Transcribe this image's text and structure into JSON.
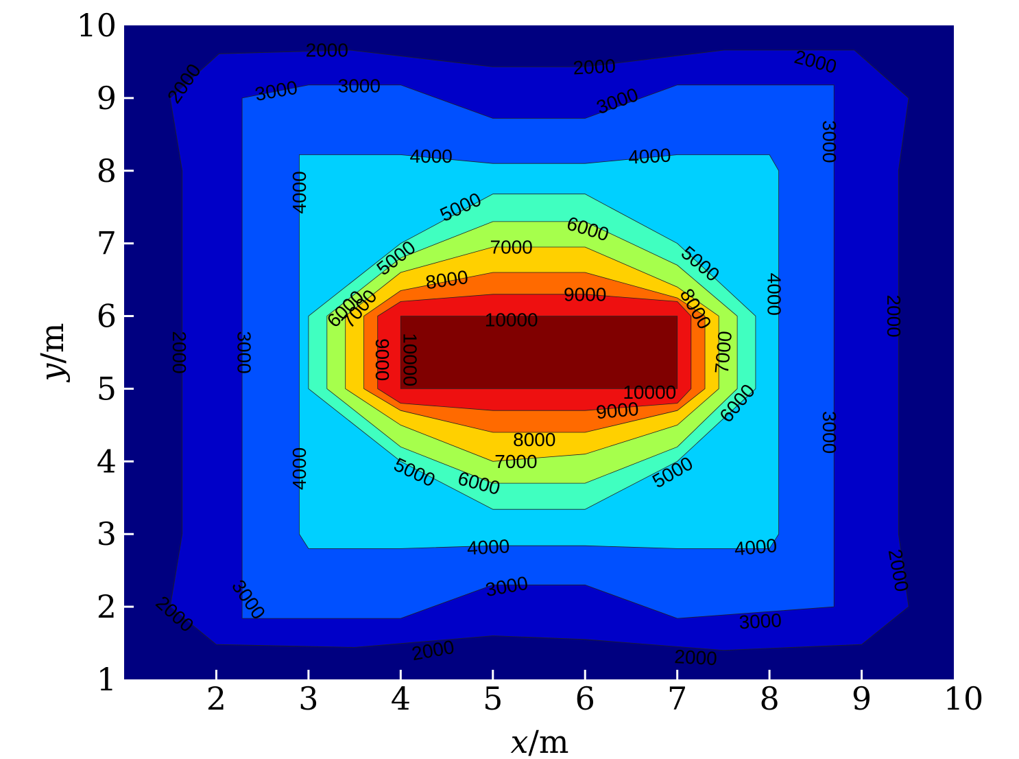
{
  "chart_data": {
    "type": "contour",
    "xlabel_var": "x",
    "ylabel_var": "y",
    "unit": "/m",
    "xlim": [
      1,
      10
    ],
    "ylim": [
      1,
      10
    ],
    "xticks": [
      2,
      3,
      4,
      5,
      6,
      7,
      8,
      9,
      10
    ],
    "yticks": [
      1,
      2,
      3,
      4,
      5,
      6,
      7,
      8,
      9,
      10
    ],
    "grid": false,
    "colormap": "jet",
    "background_color": "#000080",
    "levels": [
      {
        "value": 2000,
        "color": "#0000C8",
        "polygon": [
          [
            2.03,
            9.61
          ],
          [
            3.45,
            9.66
          ],
          [
            5.0,
            9.43
          ],
          [
            6.0,
            9.43
          ],
          [
            7.51,
            9.66
          ],
          [
            8.92,
            9.66
          ],
          [
            9.51,
            9.0
          ],
          [
            9.4,
            8.0
          ],
          [
            9.4,
            3.0
          ],
          [
            9.51,
            2.0
          ],
          [
            9.0,
            1.48
          ],
          [
            7.5,
            1.4
          ],
          [
            6.0,
            1.55
          ],
          [
            5.0,
            1.6
          ],
          [
            3.5,
            1.44
          ],
          [
            2.0,
            1.48
          ],
          [
            1.5,
            2.0
          ],
          [
            1.63,
            3.0
          ],
          [
            1.63,
            8.0
          ],
          [
            1.5,
            9.0
          ]
        ]
      },
      {
        "value": 3000,
        "color": "#0050FF",
        "polygon": [
          [
            2.28,
            9.0
          ],
          [
            3.0,
            9.18
          ],
          [
            4.0,
            9.18
          ],
          [
            5.0,
            8.72
          ],
          [
            6.0,
            8.72
          ],
          [
            7.0,
            9.18
          ],
          [
            8.7,
            9.18
          ],
          [
            8.7,
            2.0
          ],
          [
            7.0,
            1.84
          ],
          [
            6.0,
            2.3
          ],
          [
            5.0,
            2.3
          ],
          [
            4.0,
            1.84
          ],
          [
            2.28,
            1.84
          ]
        ]
      },
      {
        "value": 4000,
        "color": "#00D0FF",
        "polygon": [
          [
            2.9,
            8.22
          ],
          [
            4.0,
            8.22
          ],
          [
            5.0,
            8.1
          ],
          [
            6.0,
            8.1
          ],
          [
            7.0,
            8.22
          ],
          [
            8.0,
            8.22
          ],
          [
            8.1,
            8.0
          ],
          [
            8.1,
            3.0
          ],
          [
            8.0,
            2.8
          ],
          [
            7.0,
            2.8
          ],
          [
            6.0,
            2.84
          ],
          [
            5.0,
            2.84
          ],
          [
            4.0,
            2.8
          ],
          [
            3.0,
            2.8
          ],
          [
            2.9,
            3.0
          ]
        ]
      },
      {
        "value": 5000,
        "color": "#40FFC0",
        "polygon": [
          [
            3.0,
            6.0
          ],
          [
            4.0,
            7.0
          ],
          [
            5.0,
            7.68
          ],
          [
            6.0,
            7.68
          ],
          [
            7.0,
            7.0
          ],
          [
            7.85,
            6.0
          ],
          [
            7.85,
            5.0
          ],
          [
            7.0,
            4.0
          ],
          [
            6.0,
            3.34
          ],
          [
            5.0,
            3.34
          ],
          [
            4.0,
            4.0
          ],
          [
            3.0,
            5.0
          ]
        ]
      },
      {
        "value": 6000,
        "color": "#A6FF4C",
        "polygon": [
          [
            3.2,
            6.0
          ],
          [
            4.0,
            6.8
          ],
          [
            5.0,
            7.3
          ],
          [
            6.0,
            7.3
          ],
          [
            7.0,
            6.7
          ],
          [
            7.65,
            6.0
          ],
          [
            7.65,
            5.0
          ],
          [
            7.0,
            4.2
          ],
          [
            6.0,
            3.7
          ],
          [
            5.0,
            3.7
          ],
          [
            4.0,
            4.2
          ],
          [
            3.2,
            5.0
          ]
        ]
      },
      {
        "value": 7000,
        "color": "#FFD000",
        "polygon": [
          [
            3.4,
            6.0
          ],
          [
            4.0,
            6.6
          ],
          [
            5.0,
            6.95
          ],
          [
            6.0,
            6.95
          ],
          [
            7.0,
            6.4
          ],
          [
            7.45,
            6.0
          ],
          [
            7.45,
            5.0
          ],
          [
            7.0,
            4.5
          ],
          [
            6.0,
            4.1
          ],
          [
            5.0,
            4.0
          ],
          [
            4.0,
            4.5
          ],
          [
            3.4,
            5.0
          ]
        ]
      },
      {
        "value": 8000,
        "color": "#FF6A00",
        "polygon": [
          [
            3.6,
            6.0
          ],
          [
            4.0,
            6.35
          ],
          [
            5.0,
            6.6
          ],
          [
            6.0,
            6.6
          ],
          [
            7.0,
            6.25
          ],
          [
            7.3,
            6.0
          ],
          [
            7.3,
            5.0
          ],
          [
            7.0,
            4.7
          ],
          [
            6.0,
            4.4
          ],
          [
            5.0,
            4.4
          ],
          [
            4.0,
            4.7
          ],
          [
            3.6,
            5.0
          ]
        ]
      },
      {
        "value": 9000,
        "color": "#EE1010",
        "polygon": [
          [
            3.75,
            6.0
          ],
          [
            4.0,
            6.2
          ],
          [
            5.0,
            6.3
          ],
          [
            6.0,
            6.3
          ],
          [
            7.0,
            6.2
          ],
          [
            7.15,
            6.0
          ],
          [
            7.15,
            5.0
          ],
          [
            7.0,
            4.8
          ],
          [
            6.0,
            4.7
          ],
          [
            5.0,
            4.7
          ],
          [
            4.0,
            4.8
          ],
          [
            3.75,
            5.0
          ]
        ]
      },
      {
        "value": 10000,
        "color": "#800000",
        "polygon": [
          [
            4.0,
            6.0
          ],
          [
            7.0,
            6.0
          ],
          [
            7.0,
            5.0
          ],
          [
            4.0,
            5.0
          ]
        ]
      }
    ],
    "contour_labels": [
      {
        "text": "2000",
        "x": 3.2,
        "y": 9.66,
        "angle": 0
      },
      {
        "text": "2000",
        "x": 6.1,
        "y": 9.43,
        "angle": -3
      },
      {
        "text": "2000",
        "x": 8.5,
        "y": 9.5,
        "angle": 15
      },
      {
        "text": "2000",
        "x": 1.65,
        "y": 9.2,
        "angle": -55
      },
      {
        "text": "2000",
        "x": 1.6,
        "y": 5.5,
        "angle": 90
      },
      {
        "text": "2000",
        "x": 1.55,
        "y": 1.9,
        "angle": 42
      },
      {
        "text": "2000",
        "x": 9.35,
        "y": 6.0,
        "angle": 90
      },
      {
        "text": "2000",
        "x": 9.4,
        "y": 2.5,
        "angle": 80
      },
      {
        "text": "2000",
        "x": 4.35,
        "y": 1.4,
        "angle": -10
      },
      {
        "text": "2000",
        "x": 7.2,
        "y": 1.3,
        "angle": 3
      },
      {
        "text": "3000",
        "x": 2.65,
        "y": 9.1,
        "angle": -10
      },
      {
        "text": "3000",
        "x": 3.55,
        "y": 9.17,
        "angle": 0
      },
      {
        "text": "3000",
        "x": 6.35,
        "y": 8.96,
        "angle": -20
      },
      {
        "text": "3000",
        "x": 8.65,
        "y": 8.4,
        "angle": 90
      },
      {
        "text": "3000",
        "x": 2.3,
        "y": 5.5,
        "angle": 90
      },
      {
        "text": "3000",
        "x": 2.35,
        "y": 2.1,
        "angle": 55
      },
      {
        "text": "3000",
        "x": 8.65,
        "y": 4.4,
        "angle": 90
      },
      {
        "text": "3000",
        "x": 5.15,
        "y": 2.28,
        "angle": -10
      },
      {
        "text": "3000",
        "x": 7.9,
        "y": 1.8,
        "angle": -3
      },
      {
        "text": "4000",
        "x": 4.33,
        "y": 8.2,
        "angle": 0
      },
      {
        "text": "4000",
        "x": 6.7,
        "y": 8.2,
        "angle": -3
      },
      {
        "text": "4000",
        "x": 2.9,
        "y": 7.7,
        "angle": -90
      },
      {
        "text": "4000",
        "x": 2.9,
        "y": 3.9,
        "angle": -90
      },
      {
        "text": "4000",
        "x": 8.05,
        "y": 6.3,
        "angle": 90
      },
      {
        "text": "4000",
        "x": 4.95,
        "y": 2.82,
        "angle": -3
      },
      {
        "text": "4000",
        "x": 7.85,
        "y": 2.82,
        "angle": -5
      },
      {
        "text": "5000",
        "x": 4.65,
        "y": 7.5,
        "angle": -25
      },
      {
        "text": "5000",
        "x": 3.95,
        "y": 6.8,
        "angle": -38
      },
      {
        "text": "5000",
        "x": 7.25,
        "y": 6.72,
        "angle": 40
      },
      {
        "text": "5000",
        "x": 4.15,
        "y": 3.85,
        "angle": 25
      },
      {
        "text": "5000",
        "x": 6.95,
        "y": 3.85,
        "angle": -30
      },
      {
        "text": "6000",
        "x": 6.03,
        "y": 7.2,
        "angle": 17
      },
      {
        "text": "6000",
        "x": 3.4,
        "y": 6.1,
        "angle": -45
      },
      {
        "text": "6000",
        "x": 7.65,
        "y": 4.8,
        "angle": -50
      },
      {
        "text": "6000",
        "x": 4.85,
        "y": 3.7,
        "angle": 15
      },
      {
        "text": "7000",
        "x": 5.2,
        "y": 6.95,
        "angle": 0
      },
      {
        "text": "7000",
        "x": 3.55,
        "y": 6.1,
        "angle": -50
      },
      {
        "text": "7000",
        "x": 7.5,
        "y": 5.5,
        "angle": -85
      },
      {
        "text": "7000",
        "x": 5.25,
        "y": 4.0,
        "angle": 0
      },
      {
        "text": "8000",
        "x": 4.5,
        "y": 6.5,
        "angle": -8
      },
      {
        "text": "8000",
        "x": 7.2,
        "y": 6.1,
        "angle": 60
      },
      {
        "text": "8000",
        "x": 5.45,
        "y": 4.3,
        "angle": 0
      },
      {
        "text": "9000",
        "x": 6.0,
        "y": 6.3,
        "angle": 0
      },
      {
        "text": "9000",
        "x": 3.8,
        "y": 5.4,
        "angle": 90
      },
      {
        "text": "9000",
        "x": 6.35,
        "y": 4.7,
        "angle": -5
      },
      {
        "text": "10000",
        "x": 5.2,
        "y": 5.95,
        "angle": 0
      },
      {
        "text": "10000",
        "x": 4.1,
        "y": 5.4,
        "angle": 90
      },
      {
        "text": "10000",
        "x": 6.7,
        "y": 4.95,
        "angle": 0
      }
    ]
  }
}
